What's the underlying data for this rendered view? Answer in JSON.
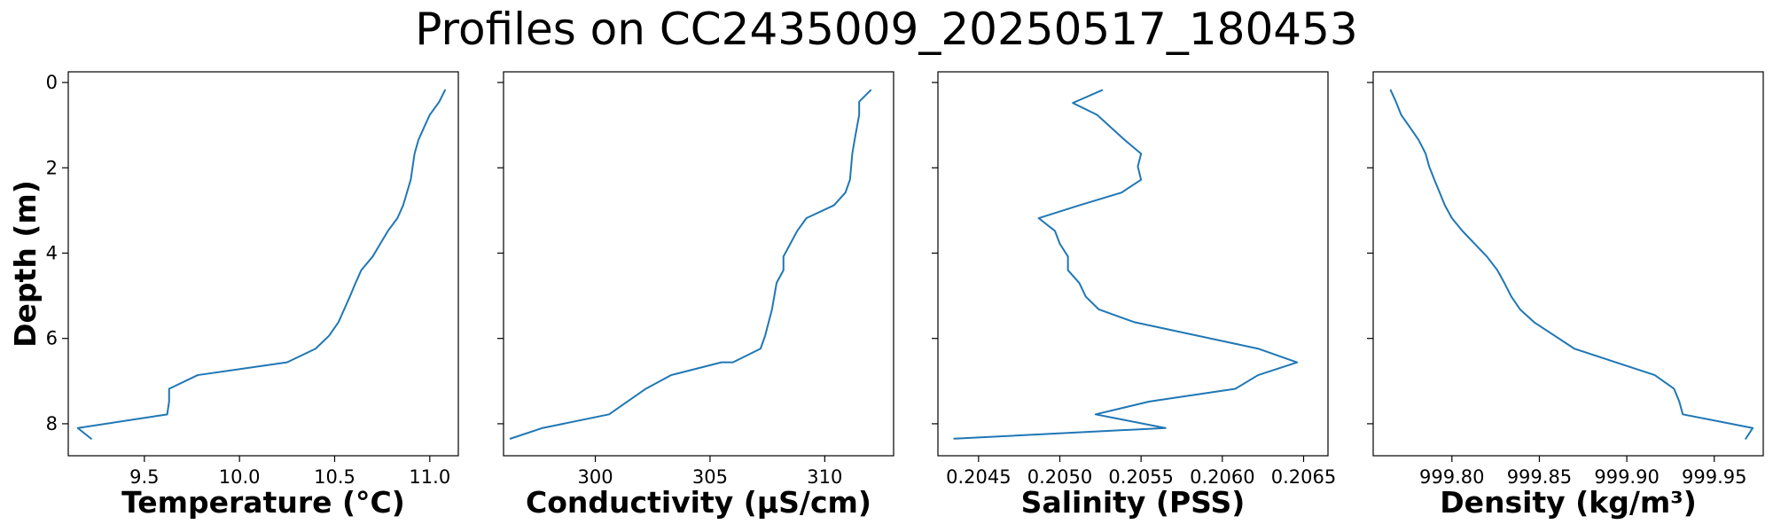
{
  "figure": {
    "title": "Profiles on CC2435009_20250517_180453"
  },
  "chart_data": [
    {
      "type": "line",
      "xlabel": "Temperature (°C)",
      "ylabel": "Depth (m)",
      "xlim": [
        9.1,
        11.15
      ],
      "ylim": [
        8.75,
        -0.25
      ],
      "xticks": [
        9.5,
        10.0,
        10.5,
        11.0
      ],
      "xtick_labels": [
        "9.5",
        "10.0",
        "10.5",
        "11.0"
      ],
      "yticks": [
        0,
        2,
        4,
        6,
        8
      ],
      "ytick_labels": [
        "0",
        "2",
        "4",
        "6",
        "8"
      ],
      "grid": false,
      "series": [
        {
          "color": "#1f77b4",
          "x": [
            11.08,
            11.05,
            11.0,
            10.97,
            10.94,
            10.92,
            10.91,
            10.9,
            10.88,
            10.86,
            10.83,
            10.78,
            10.74,
            10.7,
            10.64,
            10.61,
            10.58,
            10.55,
            10.52,
            10.47,
            10.4,
            10.25,
            9.78,
            9.63,
            9.63,
            9.62,
            9.15,
            9.22
          ],
          "y": [
            0.18,
            0.45,
            0.76,
            1.05,
            1.35,
            1.67,
            1.97,
            2.28,
            2.58,
            2.88,
            3.18,
            3.48,
            3.78,
            4.08,
            4.4,
            4.7,
            5.02,
            5.32,
            5.62,
            5.94,
            6.24,
            6.56,
            6.86,
            7.18,
            7.48,
            7.78,
            8.1,
            8.35
          ]
        }
      ]
    },
    {
      "type": "line",
      "xlabel": "Conductivity (µS/cm)",
      "xlim": [
        296.0,
        313.0
      ],
      "ylim": [
        8.75,
        -0.25
      ],
      "xticks": [
        300,
        305,
        310
      ],
      "xtick_labels": [
        "300",
        "305",
        "310"
      ],
      "yticks": [
        0,
        2,
        4,
        6,
        8
      ],
      "grid": false,
      "series": [
        {
          "color": "#1f77b4",
          "x": [
            312.0,
            311.5,
            311.5,
            311.3,
            311.2,
            311.1,
            310.9,
            310.4,
            309.2,
            308.8,
            308.5,
            308.2,
            308.2,
            307.9,
            307.7,
            307.4,
            307.2,
            306.0,
            305.5,
            303.3,
            302.2,
            300.6,
            297.7,
            296.3
          ],
          "y": [
            0.18,
            0.45,
            0.76,
            1.35,
            1.67,
            2.28,
            2.58,
            2.88,
            3.18,
            3.48,
            3.78,
            4.08,
            4.4,
            4.7,
            5.32,
            5.94,
            6.24,
            6.56,
            6.56,
            6.86,
            7.18,
            7.78,
            8.1,
            8.35
          ]
        }
      ]
    },
    {
      "type": "line",
      "xlabel": "Salinity (PSS)",
      "xlim": [
        0.20425,
        0.20665
      ],
      "ylim": [
        8.75,
        -0.25
      ],
      "xticks": [
        0.2045,
        0.205,
        0.2055,
        0.206,
        0.2065
      ],
      "xtick_labels": [
        "0.2045",
        "0.2050",
        "0.2055",
        "0.2060",
        "0.2065"
      ],
      "yticks": [
        0,
        2,
        4,
        6,
        8
      ],
      "grid": false,
      "series": [
        {
          "color": "#1f77b4",
          "x": [
            0.20526,
            0.20508,
            0.20523,
            0.2054,
            0.2055,
            0.20548,
            0.2055,
            0.20538,
            0.20512,
            0.20487,
            0.20497,
            0.205,
            0.20505,
            0.20505,
            0.20512,
            0.20516,
            0.20524,
            0.20546,
            0.20622,
            0.20646,
            0.20622,
            0.20608,
            0.20555,
            0.20522,
            0.20565,
            0.20435
          ],
          "y": [
            0.18,
            0.48,
            0.76,
            1.35,
            1.67,
            1.97,
            2.28,
            2.58,
            2.88,
            3.18,
            3.48,
            3.78,
            4.08,
            4.4,
            4.7,
            5.02,
            5.32,
            5.62,
            6.24,
            6.56,
            6.86,
            7.18,
            7.48,
            7.78,
            8.1,
            8.35
          ]
        }
      ]
    },
    {
      "type": "line",
      "xlabel": "Density (kg/m³)",
      "xlim": [
        999.755,
        999.978
      ],
      "ylim": [
        8.75,
        -0.25
      ],
      "xticks": [
        999.8,
        999.85,
        999.9,
        999.95
      ],
      "xtick_labels": [
        "999.80",
        "999.85",
        "999.90",
        "999.95"
      ],
      "yticks": [
        0,
        2,
        4,
        6,
        8
      ],
      "grid": false,
      "series": [
        {
          "color": "#1f77b4",
          "x": [
            999.765,
            999.768,
            999.771,
            999.776,
            999.781,
            999.785,
            999.787,
            999.79,
            999.793,
            999.796,
            999.8,
            999.806,
            999.813,
            999.82,
            999.826,
            999.83,
            999.834,
            999.839,
            999.847,
            999.87,
            999.916,
            999.927,
            999.93,
            999.932,
            999.972,
            999.968
          ],
          "y": [
            0.18,
            0.45,
            0.76,
            1.05,
            1.35,
            1.67,
            1.97,
            2.28,
            2.58,
            2.88,
            3.18,
            3.48,
            3.78,
            4.08,
            4.4,
            4.7,
            5.02,
            5.32,
            5.62,
            6.24,
            6.86,
            7.18,
            7.48,
            7.78,
            8.1,
            8.35
          ]
        }
      ]
    }
  ]
}
